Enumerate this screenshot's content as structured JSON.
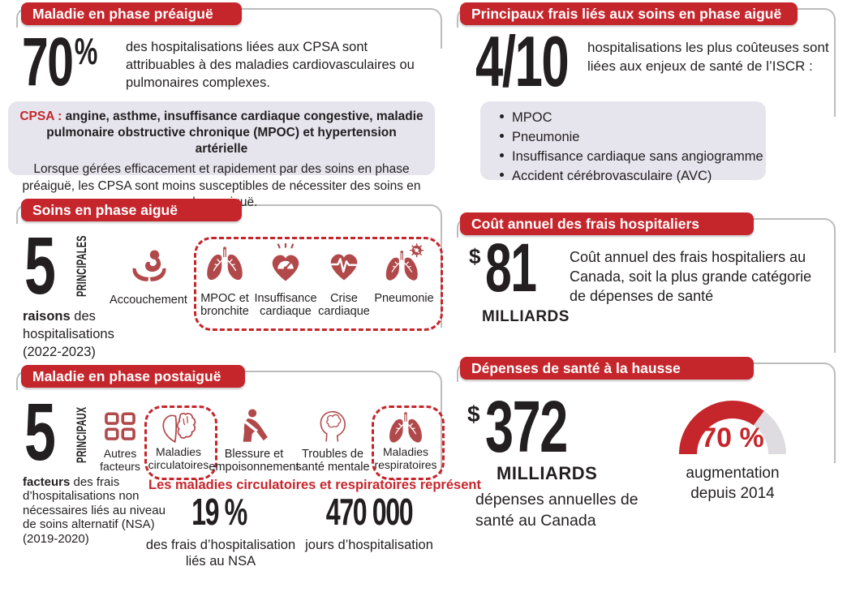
{
  "colors": {
    "header_red": "#c5262c",
    "icon_red": "#b1494b",
    "panel_gray": "#e6e4ed",
    "frame_gray": "#bcbcbc",
    "gauge_track": "#dedce1",
    "text_dark": "#231f20"
  },
  "sections": {
    "preacute": {
      "header": "Maladie en phase préaiguë",
      "stat_value": "70",
      "stat_unit": "%",
      "stat_text": "des hospitalisations liées aux CPSA sont attribuables à des maladies cardiovasculaires ou pulmonaires complexes.",
      "note_bold_prefix": "CPSA :",
      "note_bold_rest": "angine, asthme, insuffisance cardiaque congestive, maladie pulmonaire obstructive chronique (MPOC) et hypertension artérielle",
      "note_text": "Lorsque gérées efficacement et rapidement par des soins en phase préaiguë, les CPSA sont moins susceptibles de nécessiter des soins en phase aiguë."
    },
    "acute_care": {
      "header": "Soins en phase aiguë",
      "count": "5",
      "count_label": "PRINCIPALES",
      "sub_bold": "raisons",
      "sub_rest": "des hospitalisations (2022-2023)",
      "items": [
        {
          "label": "Accouchement"
        },
        {
          "label": "MPOC et bronchite"
        },
        {
          "label": "Insuffisance cardiaque"
        },
        {
          "label": "Crise cardiaque"
        },
        {
          "label": "Pneumonie"
        }
      ]
    },
    "postacute": {
      "header": "Maladie en phase postaiguë",
      "count": "5",
      "count_label": "PRINCIPAUX",
      "sub_bold": "facteurs",
      "sub_rest": "des frais d’hospitalisations non nécessaires liés au niveau de soins alternatif (NSA) (2019-2020)",
      "items": [
        {
          "label": "Autres facteurs"
        },
        {
          "label": "Maladies circulatoires"
        },
        {
          "label": "Blessure et empoisonnement"
        },
        {
          "label": "Troubles de santé mentale"
        },
        {
          "label": "Maladies respiratoires"
        }
      ],
      "highlight": "Les maladies circulatoires et respiratoires représent",
      "stats": [
        {
          "value": "19 %",
          "caption": "des frais d’hospitalisation liés au NSA"
        },
        {
          "value": "470 000",
          "caption": "jours d’hospitalisation"
        }
      ]
    },
    "acute_costs": {
      "header": "Principaux frais liés aux soins en phase aiguë",
      "stat_value": "4/10",
      "stat_text": "hospitalisations les plus coûteuses sont liées aux enjeux de santé de l’ISCR :",
      "bullets": [
        "MPOC",
        "Pneumonie",
        "Insuffisance cardiaque sans angiogramme",
        "Accident cérébrovasculaire (AVC)"
      ]
    },
    "annual_cost": {
      "header": "Coût annuel des frais hospitaliers",
      "currency": "$",
      "value": "81",
      "unit": "MILLIARDS",
      "text": "Coût annuel des frais hospitaliers au Canada, soit la plus grande catégorie de dépenses de santé"
    },
    "rising": {
      "header": "Dépenses de santé à la hausse",
      "currency": "$",
      "value": "372",
      "unit": "MILLIARDS",
      "caption": "dépenses annuelles de santé au Canada",
      "gauge": {
        "percent": 70,
        "label": "70 %",
        "caption": "augmentation depuis 2014"
      }
    }
  }
}
